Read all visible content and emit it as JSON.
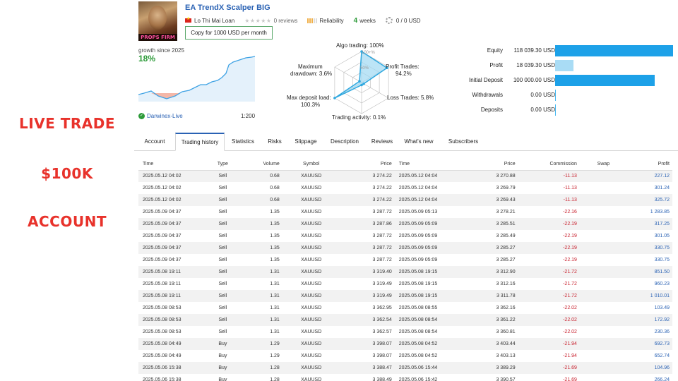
{
  "promo": {
    "line1": "LIVE TRADE",
    "line2": "$100K",
    "line3": "ACCOUNT"
  },
  "header": {
    "avatar_tag": "PROPS FIRM",
    "title": "EA TrendX Scalper BIG",
    "author": "Lo Thi Mai Loan",
    "reviews": "0 reviews",
    "reliability_label": "Reliability",
    "weeks_value": "4",
    "weeks_label": "weeks",
    "subscribers_funds": "0 / 0 USD",
    "copy_button": "Copy for 1000 USD per month"
  },
  "growth": {
    "label": "growth since 2025",
    "value": "18%",
    "broker": "Darwinex-Live",
    "leverage": "1:200"
  },
  "radar": {
    "algo": "Algo trading: 100%",
    "profit_trades": "Profit Trades:",
    "profit_trades_val": "94.2%",
    "loss_trades": "Loss Trades: 5.8%",
    "activity": "Trading activity: 0.1%",
    "max_load": "Max deposit load:",
    "max_load_val": "100.3%",
    "drawdown": "Maximum",
    "drawdown_val": "drawdown: 3.6%",
    "ring_100": "100+%",
    "ring_50": "50%",
    "values": {
      "algo": 100,
      "profit": 94.2,
      "loss": 5.8,
      "activity": 0.1,
      "load": 100.3,
      "drawdown": 3.6
    }
  },
  "balance": [
    {
      "label": "Equity",
      "value": "118 039.30 USD",
      "amount": 118039.3,
      "color": "#1da1e8"
    },
    {
      "label": "Profit",
      "value": "18 039.30 USD",
      "amount": 18039.3,
      "color": "#a9dcf5"
    },
    {
      "label": "Initial Deposit",
      "value": "100 000.00 USD",
      "amount": 100000.0,
      "color": "#1da1e8"
    },
    {
      "label": "Withdrawals",
      "value": "0.00 USD",
      "amount": 0,
      "color": "#1da1e8"
    },
    {
      "label": "Deposits",
      "value": "0.00 USD",
      "amount": 0,
      "color": "#1da1e8"
    }
  ],
  "tabs": [
    "Account",
    "Trading history",
    "Statistics",
    "Risks",
    "Slippage",
    "Description",
    "Reviews",
    "What's new",
    "Subscribers"
  ],
  "table": {
    "headers": [
      "Time",
      "Type",
      "Volume",
      "Symbol",
      "Price",
      "Time",
      "Price",
      "Commission",
      "Swap",
      "Profit"
    ],
    "rows": [
      [
        "2025.05.12 04:02",
        "Sell",
        "0.68",
        "XAUUSD",
        "3 274.22",
        "2025.05.12 04:04",
        "3 270.88",
        "-11.13",
        "",
        "227.12"
      ],
      [
        "2025.05.12 04:02",
        "Sell",
        "0.68",
        "XAUUSD",
        "3 274.22",
        "2025.05.12 04:04",
        "3 269.79",
        "-11.13",
        "",
        "301.24"
      ],
      [
        "2025.05.12 04:02",
        "Sell",
        "0.68",
        "XAUUSD",
        "3 274.22",
        "2025.05.12 04:04",
        "3 269.43",
        "-11.13",
        "",
        "325.72"
      ],
      [
        "2025.05.09 04:37",
        "Sell",
        "1.35",
        "XAUUSD",
        "3 287.72",
        "2025.05.09 05:13",
        "3 278.21",
        "-22.16",
        "",
        "1 283.85"
      ],
      [
        "2025.05.09 04:37",
        "Sell",
        "1.35",
        "XAUUSD",
        "3 287.86",
        "2025.05.09 05:09",
        "3 285.51",
        "-22.19",
        "",
        "317.25"
      ],
      [
        "2025.05.09 04:37",
        "Sell",
        "1.35",
        "XAUUSD",
        "3 287.72",
        "2025.05.09 05:09",
        "3 285.49",
        "-22.19",
        "",
        "301.05"
      ],
      [
        "2025.05.09 04:37",
        "Sell",
        "1.35",
        "XAUUSD",
        "3 287.72",
        "2025.05.09 05:09",
        "3 285.27",
        "-22.19",
        "",
        "330.75"
      ],
      [
        "2025.05.09 04:37",
        "Sell",
        "1.35",
        "XAUUSD",
        "3 287.72",
        "2025.05.09 05:09",
        "3 285.27",
        "-22.19",
        "",
        "330.75"
      ],
      [
        "2025.05.08 19:11",
        "Sell",
        "1.31",
        "XAUUSD",
        "3 319.40",
        "2025.05.08 19:15",
        "3 312.90",
        "-21.72",
        "",
        "851.50"
      ],
      [
        "2025.05.08 19:11",
        "Sell",
        "1.31",
        "XAUUSD",
        "3 319.49",
        "2025.05.08 19:15",
        "3 312.16",
        "-21.72",
        "",
        "960.23"
      ],
      [
        "2025.05.08 19:11",
        "Sell",
        "1.31",
        "XAUUSD",
        "3 319.49",
        "2025.05.08 19:15",
        "3 311.78",
        "-21.72",
        "",
        "1 010.01"
      ],
      [
        "2025.05.08 08:53",
        "Sell",
        "1.31",
        "XAUUSD",
        "3 362.95",
        "2025.05.08 08:55",
        "3 362.16",
        "-22.02",
        "",
        "103.49"
      ],
      [
        "2025.05.08 08:53",
        "Sell",
        "1.31",
        "XAUUSD",
        "3 362.54",
        "2025.05.08 08:54",
        "3 361.22",
        "-22.02",
        "",
        "172.92"
      ],
      [
        "2025.05.08 08:53",
        "Sell",
        "1.31",
        "XAUUSD",
        "3 362.57",
        "2025.05.08 08:54",
        "3 360.81",
        "-22.02",
        "",
        "230.36"
      ],
      [
        "2025.05.08 04:49",
        "Buy",
        "1.29",
        "XAUUSD",
        "3 398.07",
        "2025.05.08 04:52",
        "3 403.44",
        "-21.94",
        "",
        "692.73"
      ],
      [
        "2025.05.08 04:49",
        "Buy",
        "1.29",
        "XAUUSD",
        "3 398.07",
        "2025.05.08 04:52",
        "3 403.13",
        "-21.94",
        "",
        "652.74"
      ],
      [
        "2025.05.06 15:38",
        "Buy",
        "1.28",
        "XAUUSD",
        "3 388.47",
        "2025.05.06 15:44",
        "3 389.29",
        "-21.69",
        "",
        "104.96"
      ],
      [
        "2025.05.06 15:38",
        "Buy",
        "1.28",
        "XAUUSD",
        "3 388.49",
        "2025.05.06 15:42",
        "3 390.57",
        "-21.69",
        "",
        "266.24"
      ]
    ]
  }
}
